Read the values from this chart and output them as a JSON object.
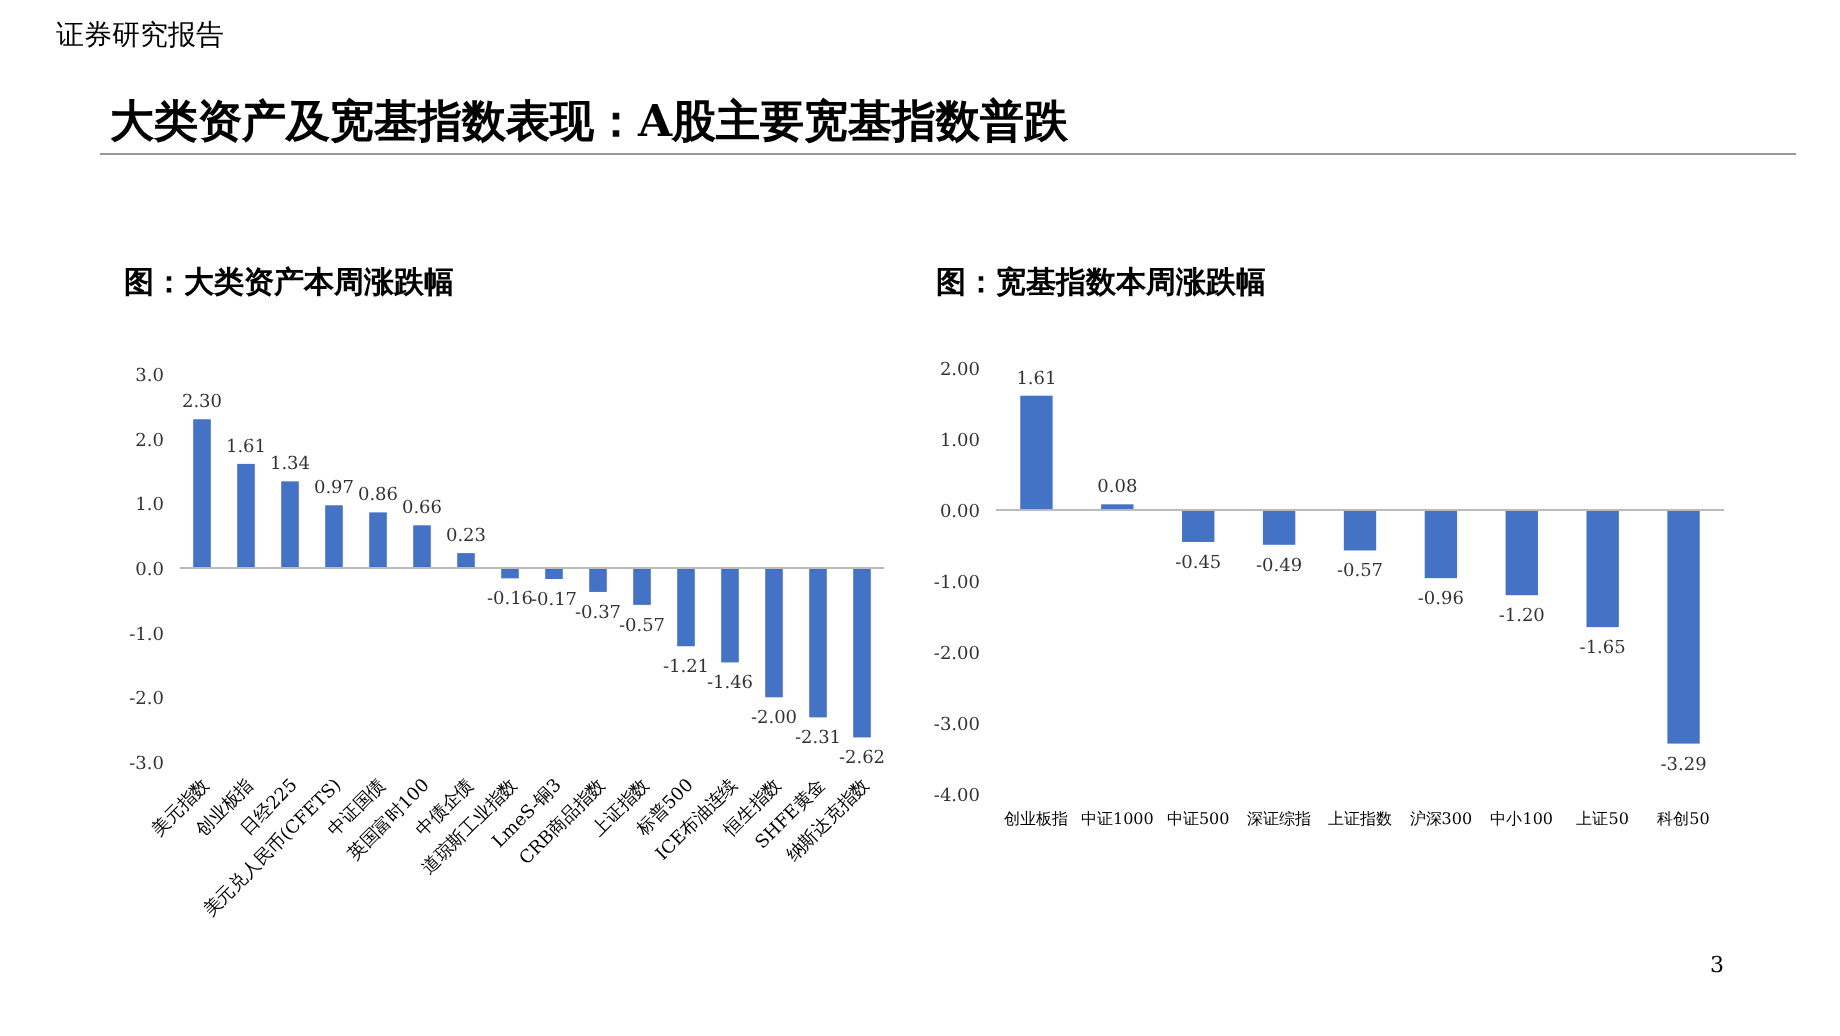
{
  "chart_data": [
    {
      "type": "bar",
      "title": "图：大类资产本周涨跌幅",
      "annotations": [
        "证券研究报告",
        "大类资产及宽基指数表现：A股主要宽基指数普跌"
      ],
      "categories": [
        "美元指数",
        "创业板指",
        "日经225",
        "美元兑人民币(CFETS)",
        "中证国债",
        "英国富时100",
        "中债企债",
        "道琼斯工业指数",
        "LmeS-铜3",
        "CRB商品指数",
        "上证指数",
        "标普500",
        "ICE布油连续",
        "恒生指数",
        "SHFE黄金",
        "纳斯达克指数"
      ],
      "values": [
        2.3,
        1.61,
        1.34,
        0.97,
        0.86,
        0.66,
        0.23,
        -0.16,
        -0.17,
        -0.37,
        -0.57,
        -1.21,
        -1.46,
        -2.0,
        -2.31,
        -2.62
      ],
      "value_labels": [
        "2.30",
        "1.61",
        "1.34",
        "0.97",
        "0.86",
        "0.66",
        "0.23",
        "-0.16",
        "-0.17",
        "-0.37",
        "-0.57",
        "-1.21",
        "-1.46",
        "-2.00",
        "-2.31",
        "-2.62"
      ],
      "color": "#4472c4",
      "ylim": [
        -3,
        3
      ],
      "yticks": [
        {
          "value": -3,
          "label": "-3.0"
        },
        {
          "value": -2,
          "label": "-2.0"
        },
        {
          "value": -1,
          "label": "-1.0"
        },
        {
          "value": 0,
          "label": "0.0"
        },
        {
          "value": 1,
          "label": "1.0"
        },
        {
          "value": 2,
          "label": "2.0"
        },
        {
          "value": 3,
          "label": "3.0"
        }
      ]
    },
    {
      "type": "bar",
      "title": "图：宽基指数本周涨跌幅",
      "annotations": [
        "3"
      ],
      "categories": [
        "创业板指",
        "中证1000",
        "中证500",
        "深证综指",
        "上证指数",
        "沪深300",
        "中小100",
        "上证50",
        "科创50"
      ],
      "values": [
        1.61,
        0.08,
        -0.45,
        -0.49,
        -0.57,
        -0.96,
        -1.2,
        -1.65,
        -3.29
      ],
      "value_labels": [
        "1.61",
        "0.08",
        "-0.45",
        "-0.49",
        "-0.57",
        "-0.96",
        "-1.20",
        "-1.65",
        "-3.29"
      ],
      "color": "#4472c4",
      "ylim": [
        -4,
        2
      ],
      "yticks": [
        {
          "value": -4,
          "label": "-4.00"
        },
        {
          "value": -3,
          "label": "-3.00"
        },
        {
          "value": -2,
          "label": "-2.00"
        },
        {
          "value": -1,
          "label": "-1.00"
        },
        {
          "value": 0,
          "label": "0.00"
        },
        {
          "value": 1,
          "label": "1.00"
        },
        {
          "value": 2,
          "label": "2.00"
        }
      ]
    }
  ]
}
